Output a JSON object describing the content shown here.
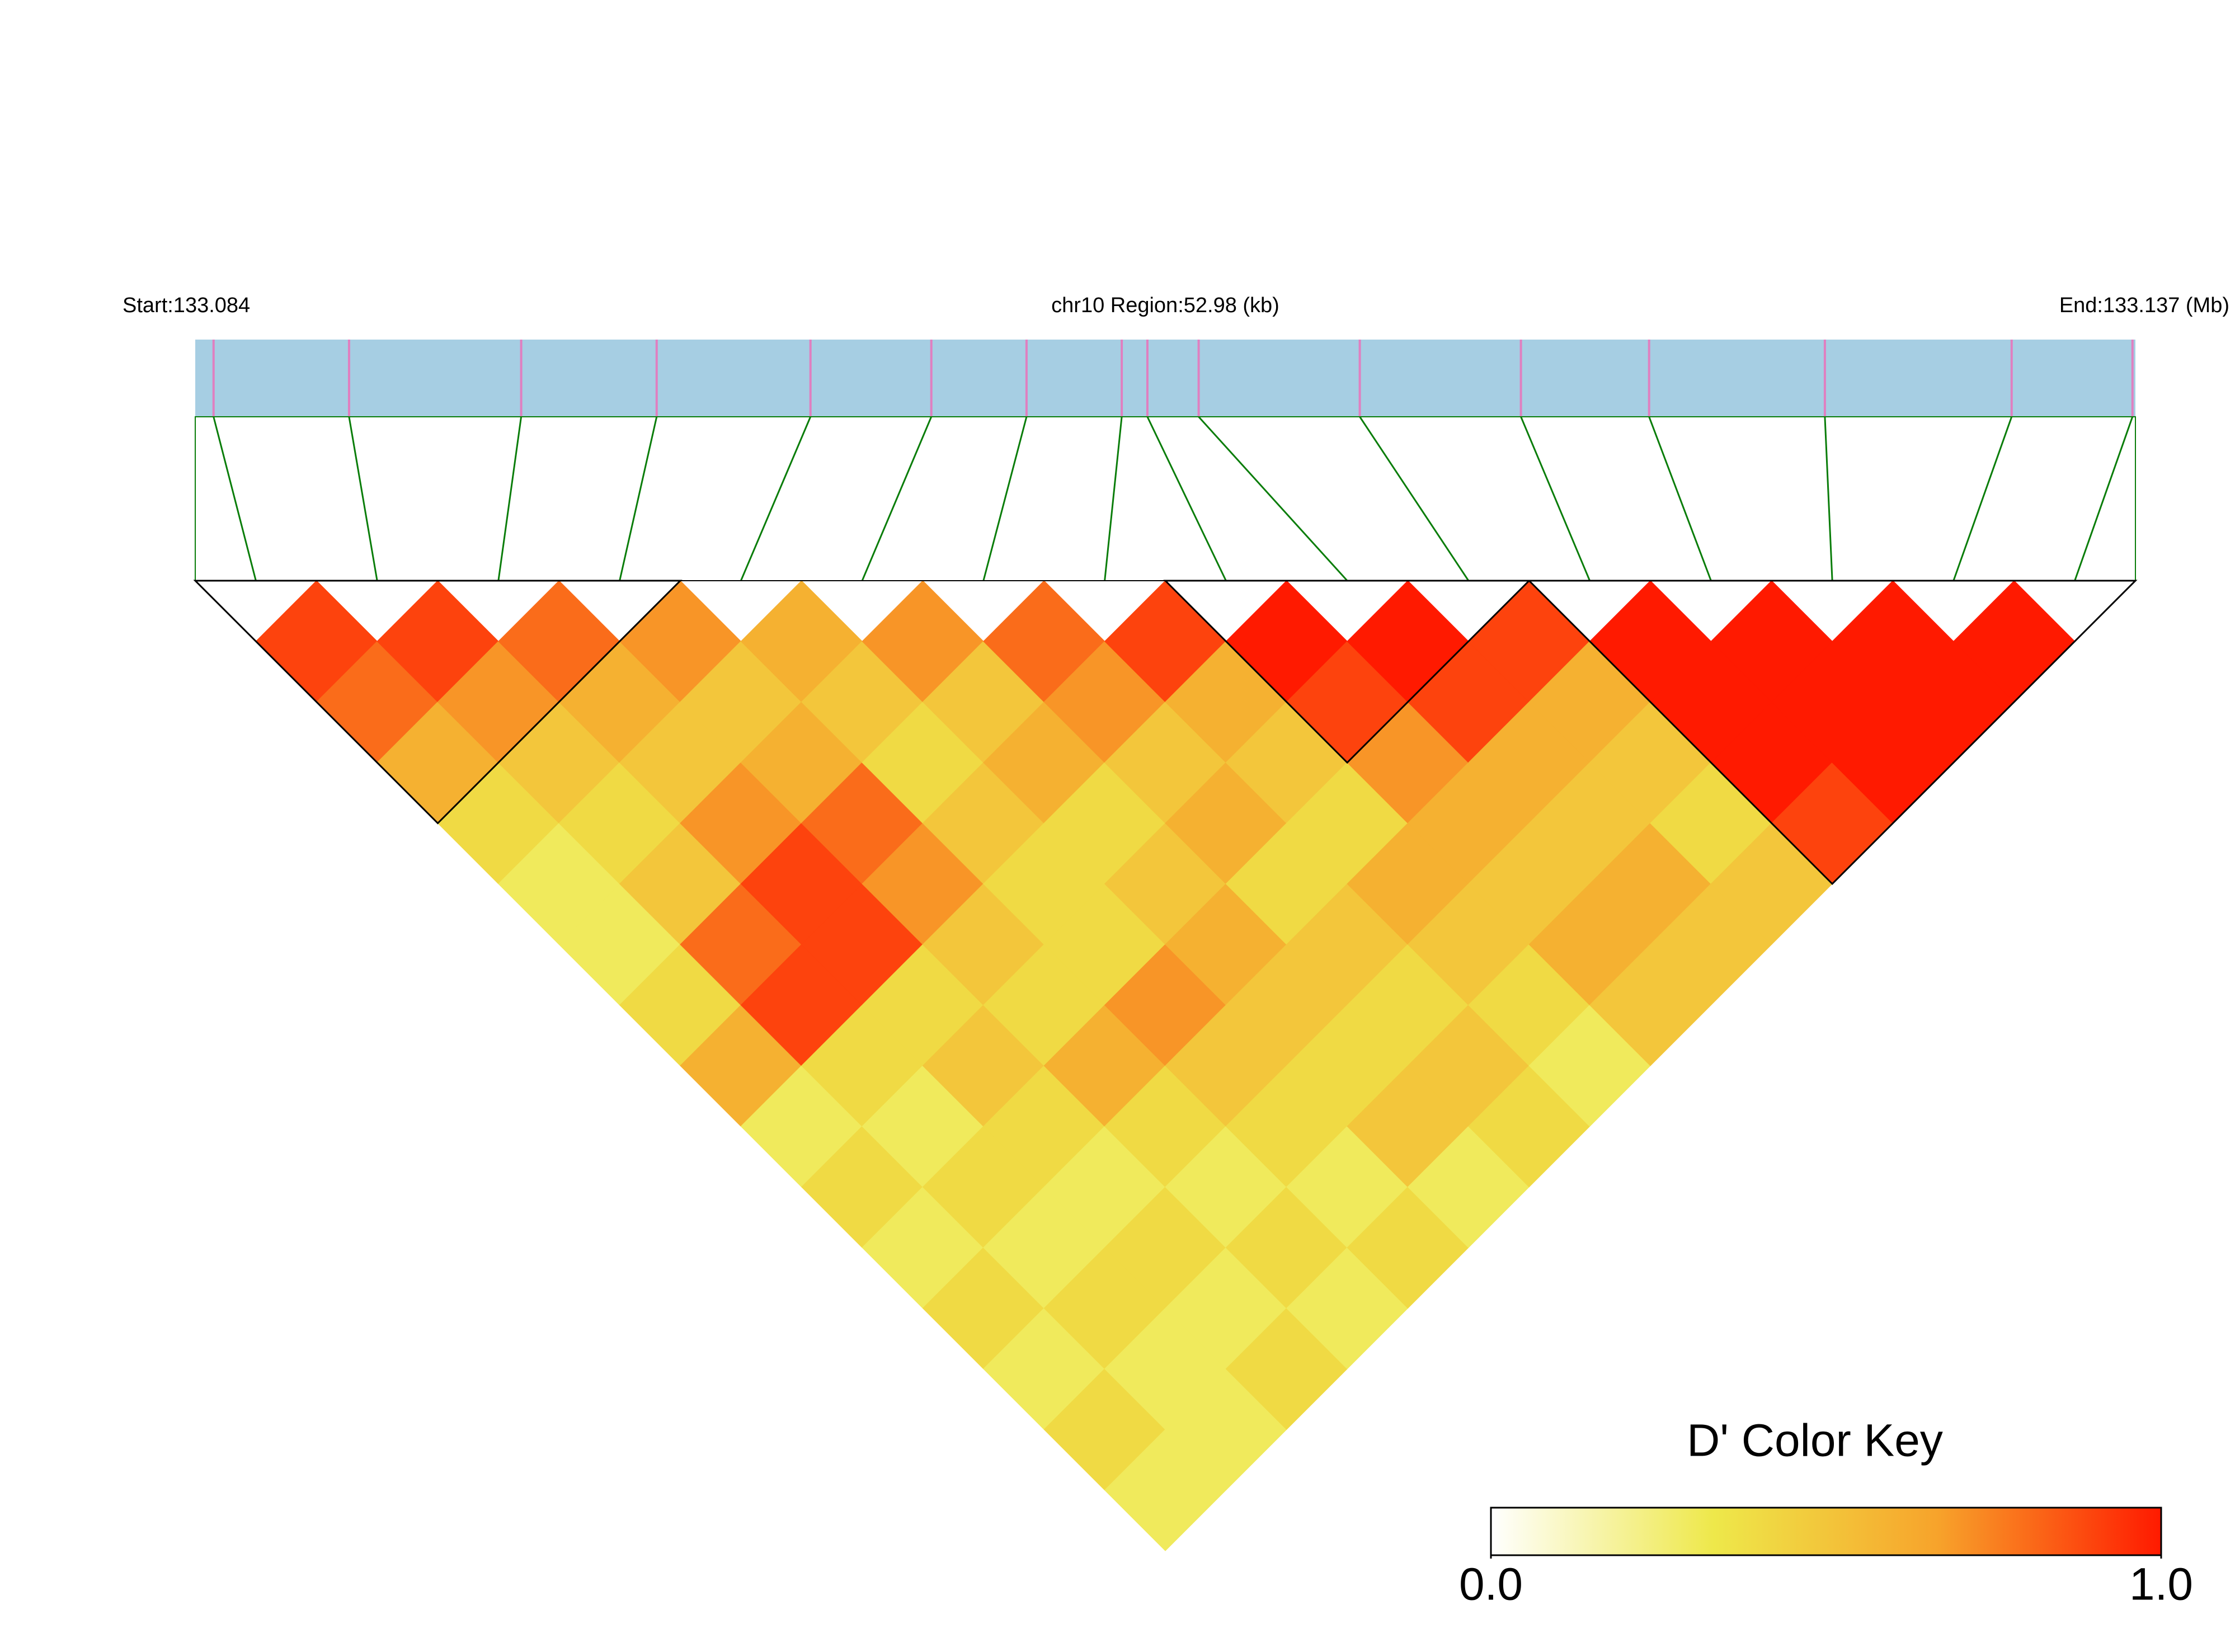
{
  "chart_data": {
    "type": "ld_heatmap",
    "start_label": "Start:133.084",
    "region_label": "chr10 Region:52.98 (kb)",
    "end_label": "End:133.137 (Mb)",
    "key_title": "D' Color Key",
    "xlim": [
      0,
      52.98
    ],
    "snp_positions_kb": [
      0.5,
      4.2,
      8.9,
      12.6,
      16.8,
      20.1,
      22.7,
      25.3,
      26.0,
      27.4,
      31.8,
      36.2,
      39.7,
      44.5,
      49.6,
      52.9
    ],
    "track_color": "#a6cee3",
    "snp_color": "#e07fc0",
    "link_color": "#0a7d0a",
    "d_prime": [
      [
        0.9,
        0.8,
        0.6,
        0.4,
        0.3,
        0.3,
        0.4,
        0.6,
        0.3,
        0.4,
        0.3,
        0.4,
        0.3,
        0.4,
        0.3
      ],
      [
        0.9,
        0.7,
        0.5,
        0.4,
        0.5,
        0.8,
        0.9,
        0.4,
        0.3,
        0.4,
        0.3,
        0.4,
        0.3,
        0.3
      ],
      [
        0.8,
        0.6,
        0.5,
        0.7,
        0.9,
        0.9,
        0.4,
        0.5,
        0.4,
        0.3,
        0.4,
        0.3,
        0.4
      ],
      [
        0.7,
        0.5,
        0.6,
        0.8,
        0.7,
        0.5,
        0.4,
        0.6,
        0.4,
        0.3,
        0.4,
        0.3
      ],
      [
        0.6,
        0.5,
        0.4,
        0.5,
        0.4,
        0.4,
        0.7,
        0.5,
        0.4,
        0.3,
        0.4
      ],
      [
        0.7,
        0.5,
        0.6,
        0.4,
        0.5,
        0.6,
        0.5,
        0.4,
        0.5,
        0.3
      ],
      [
        0.8,
        0.7,
        0.5,
        0.6,
        0.4,
        0.5,
        0.4,
        0.5,
        0.4
      ],
      [
        0.9,
        0.6,
        0.5,
        0.4,
        0.6,
        0.5,
        0.4,
        0.3
      ],
      [
        1,
        0.9,
        0.7,
        0.6,
        0.5,
        0.6,
        0.5
      ],
      [
        1,
        0.9,
        0.6,
        0.5,
        0.6,
        0.5
      ],
      [
        0.9,
        0.6,
        0.5,
        0.4,
        0.5
      ],
      [
        1,
        1,
        1,
        0.9
      ],
      [
        1,
        1,
        1
      ],
      [
        1,
        1
      ],
      [
        1
      ]
    ],
    "blocks": [
      [
        0,
        3
      ],
      [
        8,
        10
      ],
      [
        11,
        15
      ]
    ],
    "colors": [
      "#ffffff",
      "#eee84a",
      "#f7a32b",
      "#ff1a00"
    ],
    "key_lim": [
      0,
      1
    ],
    "key_ticks": [
      {
        "value": 0,
        "label": "0.0"
      },
      {
        "value": 1,
        "label": "1.0"
      }
    ]
  }
}
